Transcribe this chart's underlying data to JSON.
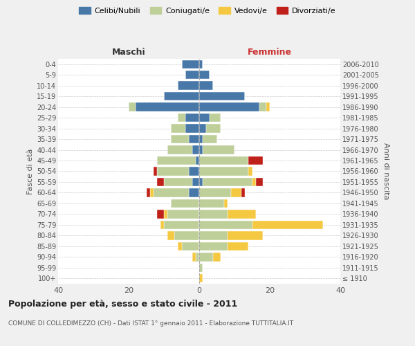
{
  "age_groups": [
    "100+",
    "95-99",
    "90-94",
    "85-89",
    "80-84",
    "75-79",
    "70-74",
    "65-69",
    "60-64",
    "55-59",
    "50-54",
    "45-49",
    "40-44",
    "35-39",
    "30-34",
    "25-29",
    "20-24",
    "15-19",
    "10-14",
    "5-9",
    "0-4"
  ],
  "birth_years": [
    "≤ 1910",
    "1911-1915",
    "1916-1920",
    "1921-1925",
    "1926-1930",
    "1931-1935",
    "1936-1940",
    "1941-1945",
    "1946-1950",
    "1951-1955",
    "1956-1960",
    "1961-1965",
    "1966-1970",
    "1971-1975",
    "1976-1980",
    "1981-1985",
    "1986-1990",
    "1991-1995",
    "1996-2000",
    "2001-2005",
    "2006-2010"
  ],
  "colors": {
    "celibi": "#4878A8",
    "coniugati": "#BECF9A",
    "vedovi": "#F5C842",
    "divorziati": "#C0201A"
  },
  "maschi": {
    "celibi": [
      0,
      0,
      0,
      0,
      0,
      0,
      0,
      0,
      3,
      2,
      3,
      1,
      2,
      3,
      4,
      4,
      18,
      10,
      6,
      4,
      5
    ],
    "coniugati": [
      0,
      0,
      1,
      5,
      7,
      10,
      9,
      8,
      10,
      8,
      9,
      11,
      7,
      5,
      4,
      2,
      2,
      0,
      0,
      0,
      0
    ],
    "vedovi": [
      0,
      0,
      1,
      1,
      2,
      1,
      1,
      0,
      1,
      0,
      0,
      0,
      0,
      0,
      0,
      0,
      0,
      0,
      0,
      0,
      0
    ],
    "divorziati": [
      0,
      0,
      0,
      0,
      0,
      0,
      2,
      0,
      1,
      2,
      1,
      0,
      0,
      0,
      0,
      0,
      0,
      0,
      0,
      0,
      0
    ]
  },
  "femmine": {
    "celibi": [
      0,
      0,
      0,
      0,
      0,
      0,
      0,
      0,
      0,
      1,
      0,
      0,
      1,
      1,
      2,
      3,
      17,
      13,
      4,
      3,
      1
    ],
    "coniugati": [
      0,
      1,
      4,
      8,
      8,
      15,
      8,
      7,
      9,
      14,
      14,
      14,
      9,
      4,
      4,
      3,
      2,
      0,
      0,
      0,
      0
    ],
    "vedovi": [
      1,
      0,
      2,
      6,
      10,
      20,
      8,
      1,
      3,
      1,
      1,
      0,
      0,
      0,
      0,
      0,
      1,
      0,
      0,
      0,
      0
    ],
    "divorziati": [
      0,
      0,
      0,
      0,
      0,
      0,
      0,
      0,
      1,
      2,
      0,
      4,
      0,
      0,
      0,
      0,
      0,
      0,
      0,
      0,
      0
    ]
  },
  "xlim": 40,
  "title": "Popolazione per età, sesso e stato civile - 2011",
  "subtitle": "COMUNE DI COLLEDIMEZZO (CH) - Dati ISTAT 1° gennaio 2011 - Elaborazione TUTTITALIA.IT",
  "ylabel_left": "Fasce di età",
  "ylabel_right": "Anni di nascita",
  "xlabel_maschi": "Maschi",
  "xlabel_femmine": "Femmine",
  "legend_labels": [
    "Celibi/Nubili",
    "Coniugati/e",
    "Vedovi/e",
    "Divorziati/e"
  ],
  "bg_color": "#F0F0F0",
  "plot_bg_color": "#FFFFFF"
}
